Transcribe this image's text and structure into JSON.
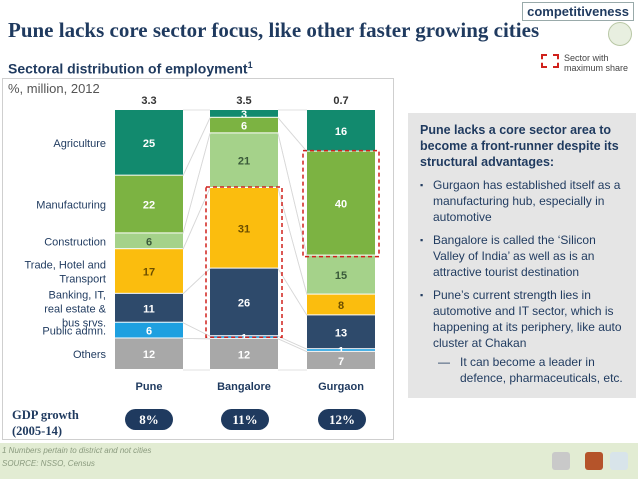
{
  "slide": {
    "title": "Pune lacks core sector focus, like other faster growing cities",
    "brand_tag": "competitiveness"
  },
  "legend": {
    "label": "Sector with maximum share",
    "highlight_color": "#d0211c"
  },
  "chart_data": {
    "type": "bar",
    "stacked": "percent",
    "title": "Sectoral distribution of employment",
    "title_footnote_mark": "1",
    "subtitle": "%, million, 2012",
    "categories": [
      "Pune",
      "Bangalore",
      "Gurgaon"
    ],
    "totals": [
      "3.3",
      "3.5",
      "0.7"
    ],
    "series": [
      {
        "name": "Agriculture",
        "color": "#128a6e",
        "values": [
          25,
          3,
          16
        ]
      },
      {
        "name": "Manufacturing",
        "color": "#7cb342",
        "values": [
          22,
          6,
          40
        ]
      },
      {
        "name": "Construction",
        "color": "#a5d28a",
        "values": [
          6,
          21,
          15
        ]
      },
      {
        "name": "Trade, Hotel and Transport",
        "color": "#fbbd0e",
        "values": [
          17,
          31,
          8
        ]
      },
      {
        "name": "Banking, IT, real estate & bus srvs.",
        "color": "#2e4a6b",
        "values": [
          11,
          26,
          13
        ]
      },
      {
        "name": "Public admn.",
        "color": "#1ea0e0",
        "values": [
          6,
          1,
          1
        ]
      },
      {
        "name": "Others",
        "color": "#a8a8a8",
        "values": [
          12,
          12,
          7
        ]
      }
    ],
    "highlighted": [
      null,
      null,
      null
    ],
    "highlight_note": "Bangalore: Trade, Hotel and Transport + Banking, IT (max share); Gurgaon: Manufacturing (max share)"
  },
  "side_panel": {
    "heading": "Pune  lacks a core sector area to become a front-runner despite its structural advantages:",
    "bullets": [
      "Gurgaon has established itself  as a manufacturing hub, especially in automotive",
      "Bangalore is called the  ‘Silicon Valley  of India’ as well as is an attractive tourist destination",
      "Pune’s current strength lies in automotive and IT sector, which is happening at its periphery, like auto cluster at Chakan"
    ],
    "sub_bullet": "It can become a leader in defence, pharmaceuticals, etc.",
    "bullet_marker": "▪",
    "sub_marker": "—"
  },
  "gdp": {
    "label": "GDP growth (2005-14)",
    "values": [
      "8%",
      "11%",
      "12%"
    ]
  },
  "footer": {
    "footnote": "1 Numbers pertain to district and not cities",
    "source": "SOURCE: NSSO, Census"
  }
}
